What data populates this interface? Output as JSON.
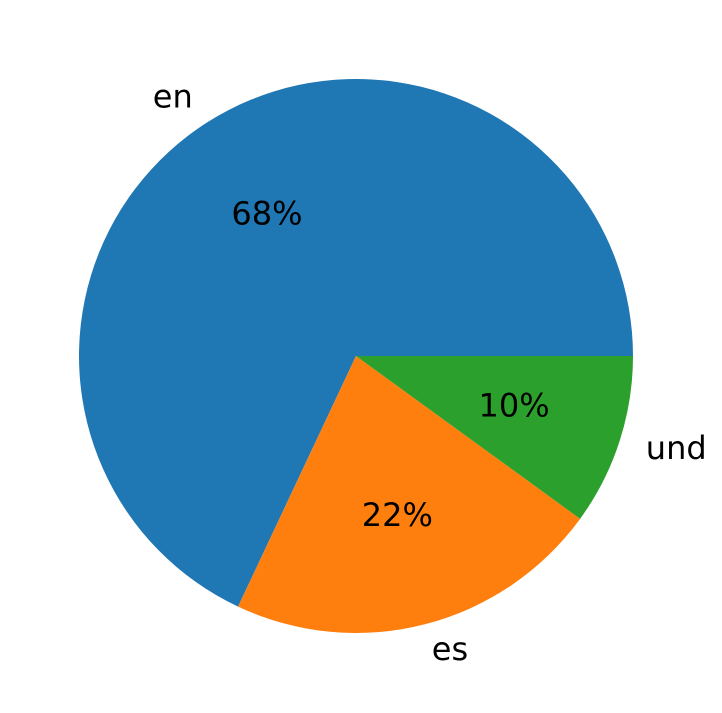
{
  "chart_data": {
    "type": "pie",
    "categories": [
      "en",
      "es",
      "und"
    ],
    "values": [
      68,
      22,
      10
    ],
    "value_labels": [
      "68%",
      "22%",
      "10%"
    ],
    "colors": [
      "#1f77b4",
      "#ff7f0e",
      "#2ca02c"
    ]
  }
}
